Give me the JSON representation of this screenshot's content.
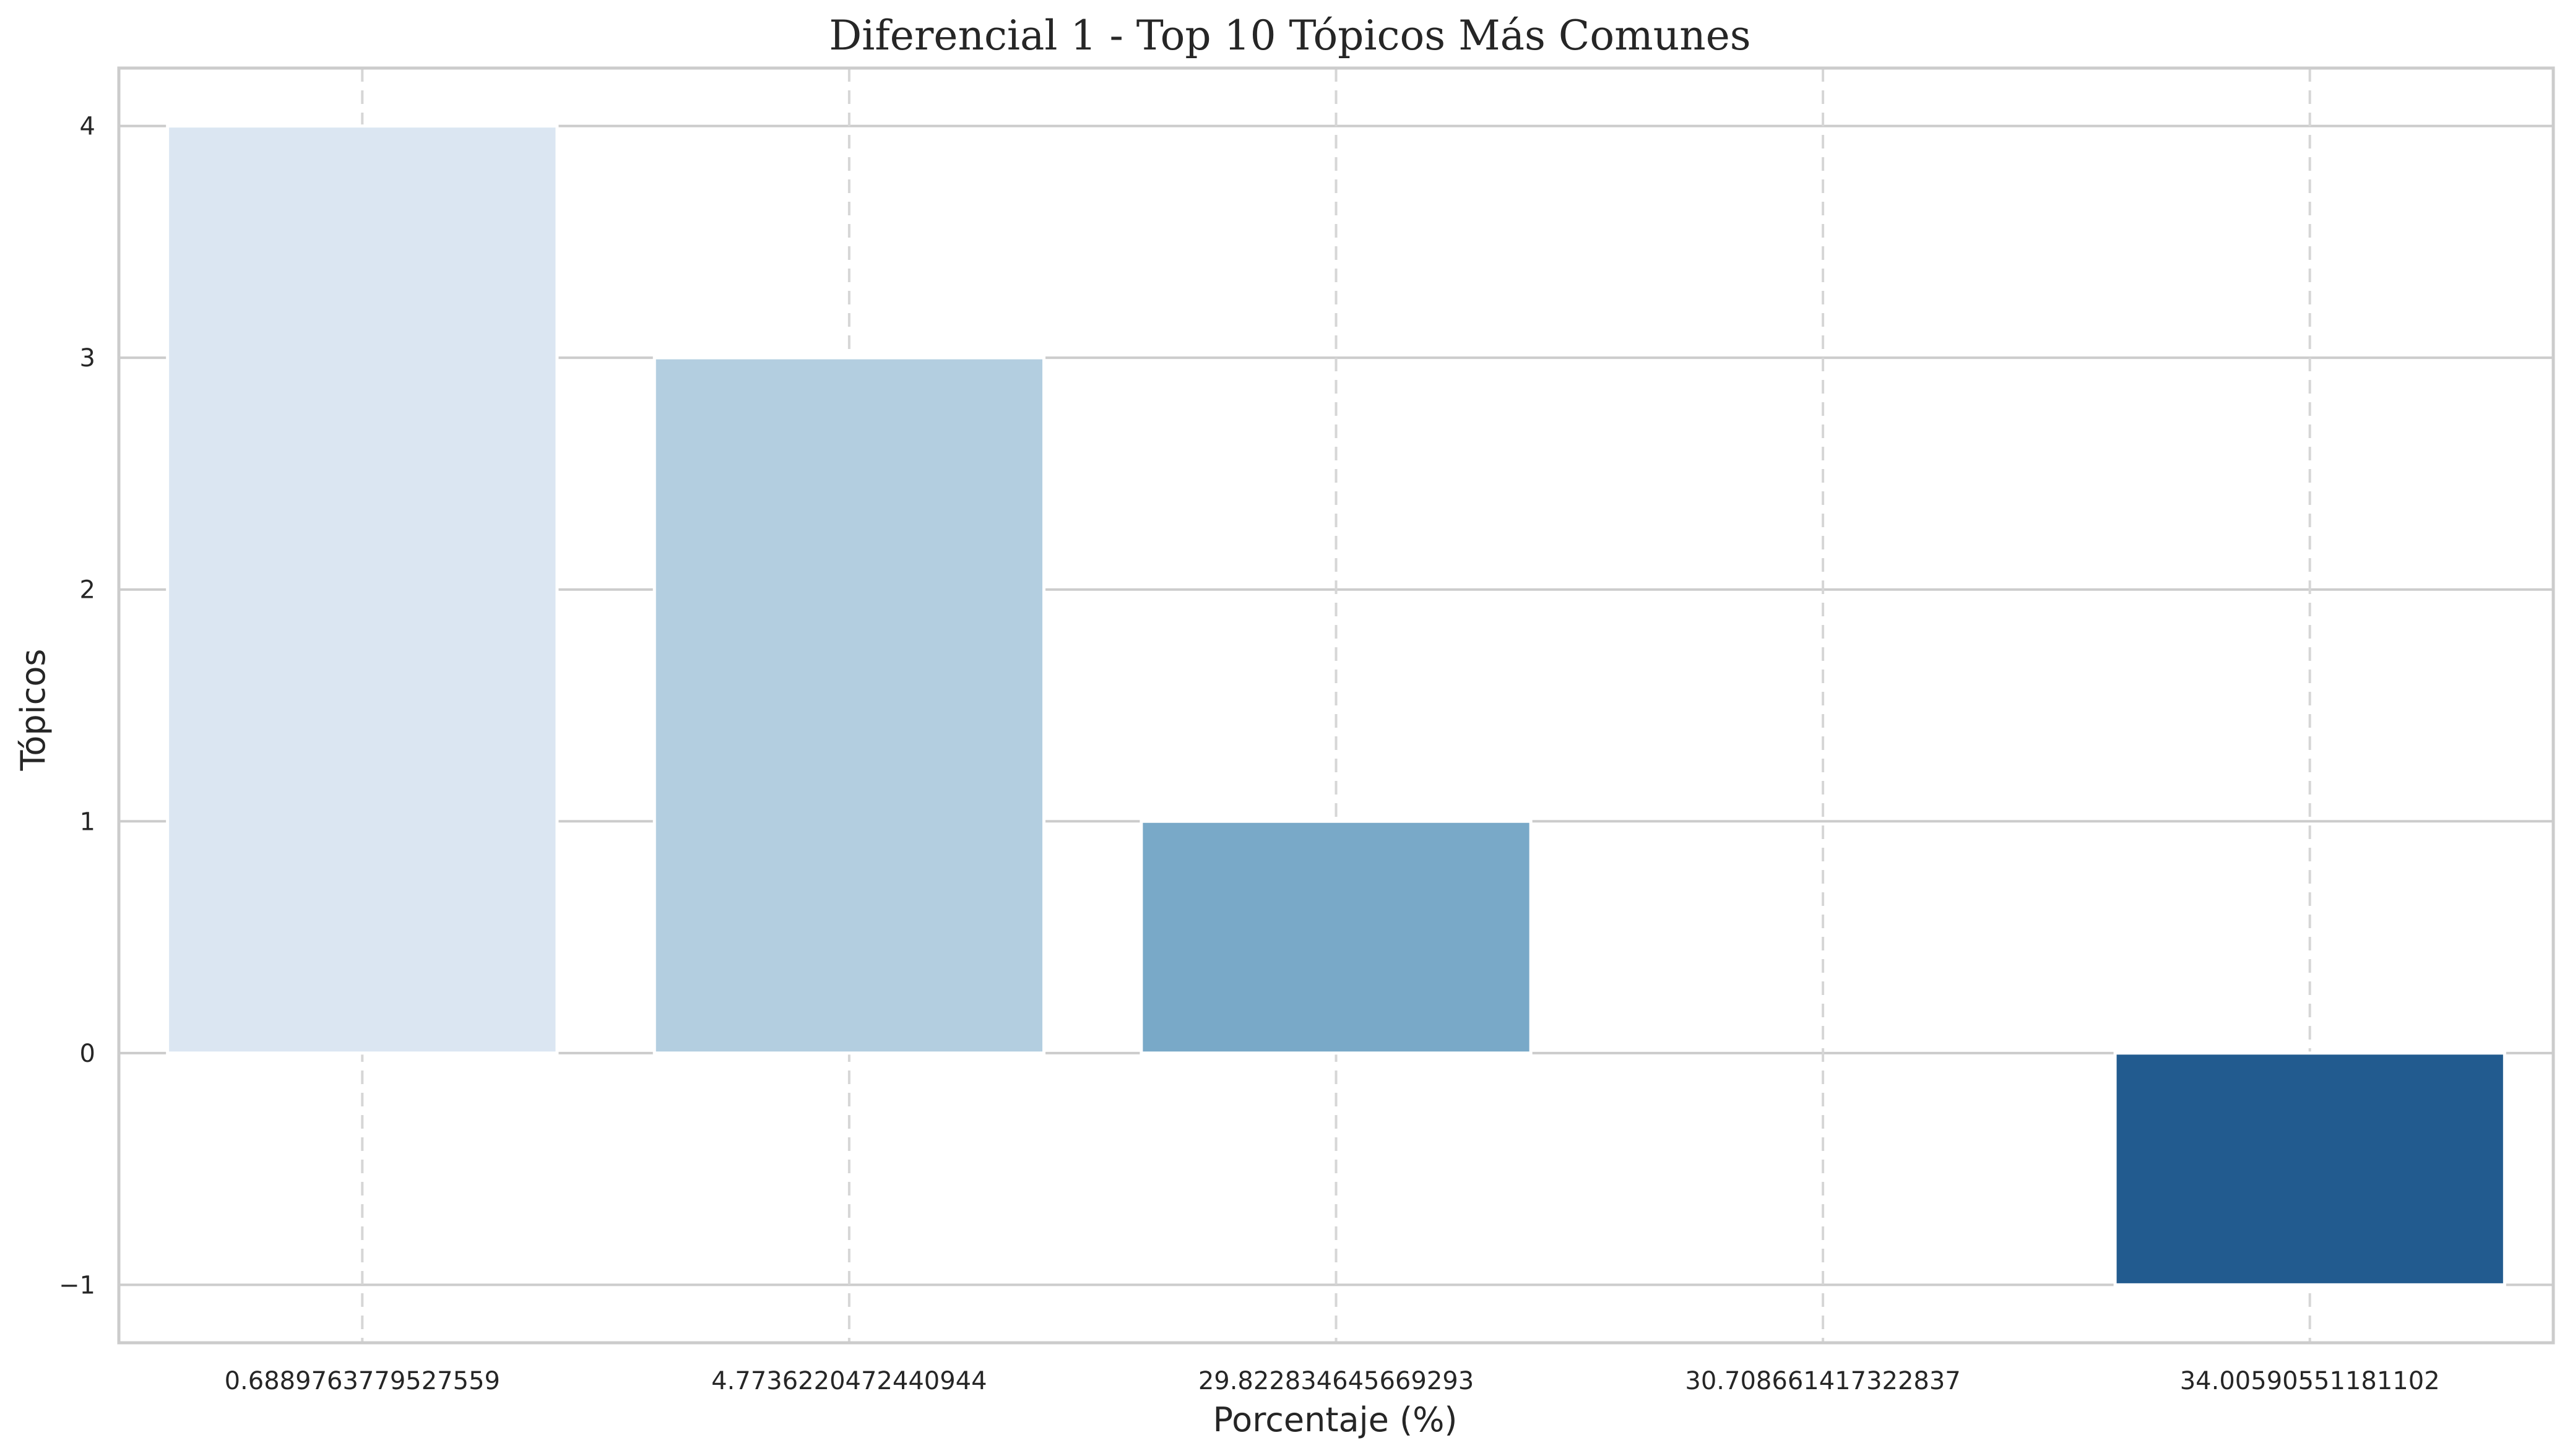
{
  "chart_data": {
    "type": "bar",
    "title": "Diferencial 1 - Top 10 Tópicos Más Comunes",
    "xlabel": "Porcentaje (%)",
    "ylabel": "Tópicos",
    "categories": [
      "0.6889763779527559",
      "4.7736220472440944",
      "29.822834645669293",
      "30.708661417322837",
      "34.00590551181102"
    ],
    "values": [
      4,
      3,
      1,
      0,
      -1
    ],
    "colors": [
      "#dbe6f2",
      "#b3cee0",
      "#79a9c8",
      "#4a87b6",
      "#225b8f"
    ],
    "ylim": [
      -1.25,
      4.25
    ],
    "yticks": [
      -1,
      0,
      1,
      2,
      3,
      4
    ],
    "ytick_labels": [
      "−1",
      "0",
      "1",
      "2",
      "3",
      "4"
    ],
    "grid": true,
    "legend": "none"
  }
}
